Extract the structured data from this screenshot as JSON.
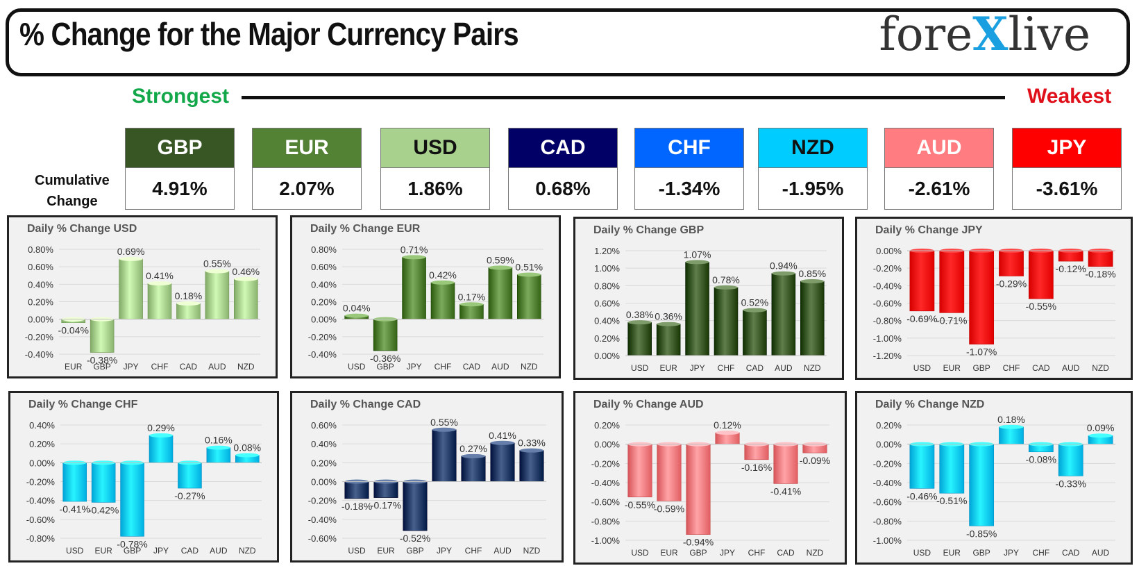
{
  "header": {
    "title": "% Change for the Major Currency Pairs",
    "logo_left": "fore",
    "logo_x": "X",
    "logo_right": "live"
  },
  "ranking": {
    "strongest_label": "Strongest",
    "weakest_label": "Weakest",
    "cumulative_label_1": "Cumulative",
    "cumulative_label_2": "Change",
    "items": [
      {
        "currency": "GBP",
        "value": "4.91%",
        "bg": "#375623",
        "fg": "#ffffff"
      },
      {
        "currency": "EUR",
        "value": "2.07%",
        "bg": "#548235",
        "fg": "#ffffff"
      },
      {
        "currency": "USD",
        "value": "1.86%",
        "bg": "#a9d18e",
        "fg": "#111111"
      },
      {
        "currency": "CAD",
        "value": "0.68%",
        "bg": "#000066",
        "fg": "#ffffff"
      },
      {
        "currency": "CHF",
        "value": "-1.34%",
        "bg": "#0066ff",
        "fg": "#ffffff"
      },
      {
        "currency": "NZD",
        "value": "-1.95%",
        "bg": "#00ccff",
        "fg": "#111111"
      },
      {
        "currency": "AUD",
        "value": "-2.61%",
        "bg": "#ff7c80",
        "fg": "#ffffff"
      },
      {
        "currency": "JPY",
        "value": "-3.61%",
        "bg": "#ff0000",
        "fg": "#ffffff"
      }
    ]
  },
  "chart_data": [
    {
      "type": "bar",
      "title": "Daily % Change USD",
      "categories": [
        "EUR",
        "GBP",
        "JPY",
        "CHF",
        "CAD",
        "AUD",
        "NZD"
      ],
      "values": [
        -0.04,
        -0.38,
        0.69,
        0.41,
        0.18,
        0.55,
        0.46
      ],
      "ylim": [
        -0.4,
        0.8
      ],
      "yticks": [
        -0.4,
        -0.2,
        0,
        0.2,
        0.4,
        0.6,
        0.8
      ],
      "color": "#a9d18e",
      "decimals": 2
    },
    {
      "type": "bar",
      "title": "Daily % Change EUR",
      "categories": [
        "USD",
        "GBP",
        "JPY",
        "CHF",
        "CAD",
        "AUD",
        "NZD"
      ],
      "values": [
        0.04,
        -0.36,
        0.71,
        0.42,
        0.17,
        0.59,
        0.51
      ],
      "ylim": [
        -0.4,
        0.8
      ],
      "yticks": [
        -0.4,
        -0.2,
        0,
        0.2,
        0.4,
        0.6,
        0.8
      ],
      "color": "#548235",
      "decimals": 2
    },
    {
      "type": "bar",
      "title": "Daily % Change GBP",
      "categories": [
        "USD",
        "EUR",
        "JPY",
        "CHF",
        "CAD",
        "AUD",
        "NZD"
      ],
      "values": [
        0.38,
        0.36,
        1.07,
        0.78,
        0.52,
        0.94,
        0.85
      ],
      "ylim": [
        0,
        1.2
      ],
      "yticks": [
        0,
        0.2,
        0.4,
        0.6,
        0.8,
        1.0,
        1.2
      ],
      "color": "#375623",
      "decimals": 2
    },
    {
      "type": "bar",
      "title": "Daily % Change JPY",
      "categories": [
        "USD",
        "EUR",
        "GBP",
        "CHF",
        "CAD",
        "AUD",
        "NZD"
      ],
      "values": [
        -0.69,
        -0.71,
        -1.07,
        -0.29,
        -0.55,
        -0.12,
        -0.18
      ],
      "ylim": [
        -1.2,
        0
      ],
      "yticks": [
        -1.2,
        -1.0,
        -0.8,
        -0.6,
        -0.4,
        -0.2,
        0
      ],
      "color": "#ff0000",
      "decimals": 2
    },
    {
      "type": "bar",
      "title": "Daily % Change CHF",
      "categories": [
        "USD",
        "EUR",
        "GBP",
        "JPY",
        "CAD",
        "AUD",
        "NZD"
      ],
      "values": [
        -0.41,
        -0.42,
        -0.78,
        0.29,
        -0.27,
        0.16,
        0.08
      ],
      "ylim": [
        -0.8,
        0.4
      ],
      "yticks": [
        -0.8,
        -0.6,
        -0.4,
        -0.2,
        0,
        0.2,
        0.4
      ],
      "color": "#00ccff",
      "decimals": 2
    },
    {
      "type": "bar",
      "title": "Daily % Change CAD",
      "categories": [
        "USD",
        "EUR",
        "GBP",
        "JPY",
        "CHF",
        "AUD",
        "NZD"
      ],
      "values": [
        -0.18,
        -0.17,
        -0.52,
        0.55,
        0.27,
        0.41,
        0.33
      ],
      "ylim": [
        -0.6,
        0.6
      ],
      "yticks": [
        -0.6,
        -0.4,
        -0.2,
        0,
        0.2,
        0.4,
        0.6
      ],
      "color": "#1f3864",
      "decimals": 2
    },
    {
      "type": "bar",
      "title": "Daily % Change AUD",
      "categories": [
        "USD",
        "EUR",
        "GBP",
        "JPY",
        "CHF",
        "CAD",
        "NZD"
      ],
      "values": [
        -0.55,
        -0.59,
        -0.94,
        0.12,
        -0.16,
        -0.41,
        -0.09
      ],
      "ylim": [
        -1.0,
        0.2
      ],
      "yticks": [
        -1.0,
        -0.8,
        -0.6,
        -0.4,
        -0.2,
        0,
        0.2
      ],
      "color": "#ff7c80",
      "decimals": 2
    },
    {
      "type": "bar",
      "title": "Daily % Change NZD",
      "categories": [
        "USD",
        "EUR",
        "GBP",
        "JPY",
        "CHF",
        "CAD",
        "AUD"
      ],
      "values": [
        -0.46,
        -0.51,
        -0.85,
        0.18,
        -0.08,
        -0.33,
        0.09
      ],
      "ylim": [
        -1.0,
        0.2
      ],
      "yticks": [
        -1.0,
        -0.8,
        -0.6,
        -0.4,
        -0.2,
        0,
        0.2
      ],
      "color": "#00ccff",
      "decimals": 2
    }
  ]
}
